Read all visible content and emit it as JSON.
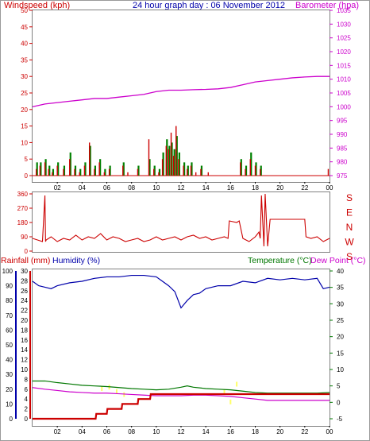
{
  "header": {
    "left": "Windspeed (kph)",
    "title": "24 hour graph day : 06 November 2012",
    "right": "Barometer (hpa)"
  },
  "colors": {
    "wind": "#cc0000",
    "gust": "#008000",
    "baro": "#cc00cc",
    "dir": "#cc0000",
    "rain": "#cc0000",
    "hum": "#0000aa",
    "temp": "#007700",
    "dew": "#cc00cc",
    "solar": "#ffff66",
    "title": "#0000aa",
    "tick": "#cc0000"
  },
  "x_ticks": [
    "02",
    "04",
    "06",
    "08",
    "10",
    "12",
    "14",
    "16",
    "18",
    "20",
    "22",
    "00"
  ],
  "chart_data": [
    {
      "type": "line",
      "name": "wind_barometer",
      "title": "24 hour graph day : 06 November 2012",
      "ylabel_left": "Windspeed (kph)",
      "ylabel_right": "Barometer (hpa)",
      "ylim_left": [
        0,
        50
      ],
      "ylim_right": [
        975,
        1035
      ],
      "yticks_left": [
        "50",
        "45",
        "40",
        "35",
        "30",
        "25",
        "20",
        "15",
        "10",
        "5",
        "0"
      ],
      "yticks_right": [
        "1035",
        "1030",
        "1025",
        "1020",
        "1015",
        "1010",
        "1005",
        "1000",
        "995",
        "990",
        "985",
        "980",
        "975"
      ],
      "series": [
        {
          "key": "baro",
          "x": [
            0,
            1,
            2,
            3,
            4,
            5,
            6,
            7,
            8,
            9,
            10,
            11,
            12,
            13,
            14,
            15,
            16,
            17,
            18,
            19,
            20,
            21,
            22,
            23,
            24
          ],
          "y": [
            1000,
            1001,
            1001.5,
            1002,
            1002.5,
            1003,
            1003,
            1003.5,
            1004,
            1004.5,
            1005.5,
            1006,
            1006,
            1006.2,
            1006.3,
            1006.5,
            1007,
            1008,
            1009,
            1009.5,
            1010,
            1010.5,
            1010.8,
            1011,
            1011
          ]
        },
        {
          "key": "wind",
          "x": [
            0.3,
            0.6,
            1.0,
            1.3,
            1.6,
            2.0,
            2.5,
            3.0,
            3.4,
            3.8,
            4.2,
            4.6,
            5.0,
            5.4,
            5.8,
            6.2,
            7.3,
            7.7,
            8.5,
            9.4,
            9.8,
            10.2,
            10.5,
            10.8,
            11.0,
            11.2,
            11.4,
            11.6,
            11.8,
            12.2,
            12.5,
            12.8,
            13.2,
            13.6,
            14.2,
            16.8,
            17.2,
            17.6,
            18.0,
            18.4,
            23.9
          ],
          "y": [
            2,
            3,
            4,
            2,
            1,
            3,
            2,
            5,
            2,
            1,
            3,
            10,
            2,
            4,
            1,
            2,
            3,
            1,
            2,
            11,
            2,
            1,
            5,
            9,
            8,
            13,
            6,
            15,
            5,
            3,
            2,
            3,
            1,
            2,
            1,
            4,
            2,
            5,
            3,
            2,
            2
          ]
        },
        {
          "key": "gust",
          "x": [
            0.3,
            0.6,
            1.0,
            1.3,
            1.6,
            2.0,
            2.5,
            3.0,
            3.4,
            3.8,
            4.2,
            4.6,
            5.0,
            5.4,
            5.8,
            6.2,
            7.3,
            8.5,
            9.4,
            9.8,
            10.2,
            10.5,
            10.8,
            11.0,
            11.2,
            11.4,
            11.6,
            11.8,
            12.2,
            12.5,
            12.8,
            13.6,
            16.8,
            17.2,
            17.6,
            18.0,
            18.4
          ],
          "y": [
            4,
            4,
            5,
            3,
            2,
            4,
            3,
            7,
            3,
            2,
            4,
            9,
            3,
            5,
            2,
            3,
            4,
            3,
            5,
            3,
            2,
            7,
            11,
            9,
            10,
            8,
            12,
            7,
            4,
            3,
            4,
            3,
            5,
            3,
            7,
            4,
            3
          ]
        }
      ]
    },
    {
      "type": "line",
      "name": "wind_direction",
      "ylim": [
        0,
        360
      ],
      "yticks": [
        "360",
        "270",
        "180",
        "90",
        "0"
      ],
      "compass": [
        "S",
        "E",
        "N",
        "W",
        "S"
      ],
      "series": [
        {
          "key": "dir",
          "x": [
            0,
            0.4,
            0.8,
            1.0,
            1.05,
            1.1,
            1.5,
            2.0,
            2.5,
            3.0,
            3.5,
            4.0,
            4.5,
            5.0,
            5.5,
            6.0,
            6.5,
            7.0,
            7.5,
            8.0,
            8.5,
            9.0,
            9.5,
            10.0,
            10.5,
            11.0,
            11.5,
            12.0,
            12.5,
            13.0,
            13.5,
            14.0,
            14.5,
            15.0,
            15.5,
            15.8,
            15.9,
            16.5,
            16.7,
            17.0,
            17.5,
            18.0,
            18.3,
            18.4,
            18.5,
            18.7,
            18.8,
            19.0,
            19.2,
            19.5,
            20.0,
            21.0,
            21.5,
            22.0,
            22.1,
            22.5,
            23.0,
            23.5,
            24.0
          ],
          "y": [
            80,
            70,
            60,
            350,
            60,
            70,
            90,
            60,
            80,
            70,
            100,
            70,
            90,
            80,
            110,
            70,
            90,
            80,
            60,
            70,
            80,
            60,
            70,
            90,
            70,
            80,
            90,
            70,
            90,
            100,
            80,
            90,
            70,
            80,
            90,
            80,
            190,
            180,
            190,
            80,
            60,
            90,
            120,
            80,
            350,
            30,
            360,
            30,
            200,
            200,
            200,
            200,
            200,
            200,
            90,
            80,
            90,
            60,
            80
          ]
        }
      ]
    },
    {
      "type": "line",
      "name": "rain_humidity_temp_dew",
      "ylabel_left1": "Rainfall (mm)",
      "ylabel_left2": "Humidity (%)",
      "ylabel_right1": "Temperature (°C)",
      "ylabel_right2": "Dew Point (°C)",
      "ylim_rain": [
        0,
        30
      ],
      "ylim_hum": [
        0,
        100
      ],
      "ylim_temp": [
        -5,
        40
      ],
      "yticks_rain": [
        "30",
        "28",
        "26",
        "24",
        "22",
        "20",
        "18",
        "16",
        "14",
        "12",
        "10",
        "8",
        "6",
        "4",
        "2",
        "0"
      ],
      "yticks_hum": [
        "100",
        "90",
        "80",
        "70",
        "60",
        "50",
        "40",
        "30",
        "20",
        "10",
        "0"
      ],
      "yticks_temp": [
        "40",
        "35",
        "30",
        "25",
        "20",
        "15",
        "10",
        "5",
        "0",
        "-5"
      ],
      "series": [
        {
          "key": "hum",
          "x": [
            0,
            0.5,
            1.0,
            1.5,
            2.0,
            3.0,
            4.0,
            5.0,
            6.0,
            7.0,
            8.0,
            9.0,
            10.0,
            10.5,
            11.0,
            11.5,
            12.0,
            12.5,
            13.0,
            13.5,
            14.0,
            15.0,
            16.0,
            17.0,
            18.0,
            19.0,
            20.0,
            21.0,
            22.0,
            23.0,
            23.5,
            24.0
          ],
          "y": [
            93,
            90,
            89,
            88,
            90,
            92,
            93,
            95,
            96,
            96,
            97,
            97,
            96,
            93,
            90,
            86,
            75,
            80,
            84,
            85,
            88,
            90,
            90,
            93,
            92,
            95,
            94,
            95,
            94,
            95,
            88,
            89
          ]
        },
        {
          "key": "temp",
          "x": [
            0,
            1,
            2,
            3,
            4,
            5,
            6,
            7,
            8,
            9,
            10,
            11,
            12,
            12.5,
            13,
            14,
            15,
            16,
            17,
            18,
            19,
            20,
            21,
            22,
            23,
            24
          ],
          "y": [
            6.5,
            6.5,
            6.0,
            5.6,
            5.2,
            5.0,
            4.8,
            4.5,
            4.2,
            4.0,
            3.8,
            4.0,
            4.6,
            5.0,
            4.6,
            4.2,
            4.0,
            3.8,
            3.4,
            3.0,
            2.8,
            2.8,
            2.8,
            2.8,
            2.8,
            3.0
          ]
        },
        {
          "key": "dew",
          "x": [
            0,
            1,
            2,
            3,
            4,
            5,
            6,
            7,
            8,
            9,
            10,
            11,
            12,
            13,
            14,
            15,
            16,
            17,
            18,
            19,
            20,
            21,
            22,
            23,
            24
          ],
          "y": [
            4.5,
            4.0,
            3.6,
            3.2,
            3.0,
            2.8,
            2.8,
            2.6,
            2.4,
            2.2,
            2.0,
            2.0,
            2.0,
            2.2,
            2.2,
            2.0,
            1.8,
            1.4,
            1.0,
            0.6,
            0.6,
            0.6,
            0.6,
            0.6,
            0.6
          ]
        },
        {
          "key": "rain",
          "x": [
            0,
            5.1,
            5.15,
            6.0,
            6.05,
            7.2,
            7.25,
            8.5,
            8.55,
            9.5,
            9.55,
            24.0
          ],
          "y": [
            0,
            0,
            1,
            1,
            2,
            2,
            3,
            3,
            4,
            4,
            5,
            5
          ]
        },
        {
          "key": "solar",
          "x": [
            5.6,
            6.2,
            6.8,
            7.4,
            15.5,
            16.0,
            16.5
          ],
          "y": [
            22,
            23,
            20,
            18,
            20,
            13,
            25
          ]
        }
      ]
    }
  ]
}
